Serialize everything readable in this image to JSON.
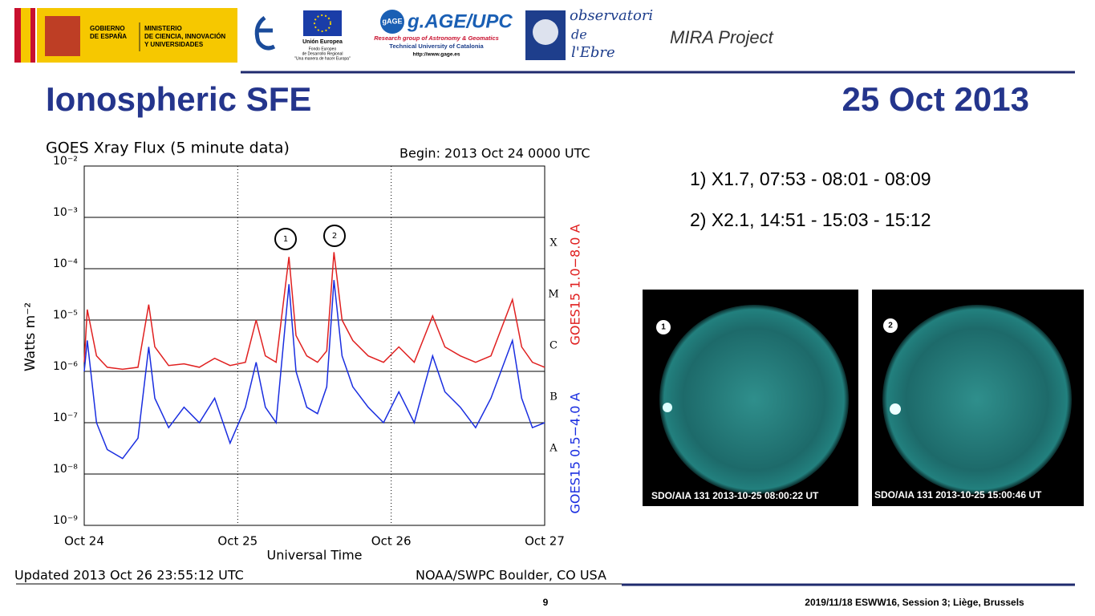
{
  "header": {
    "government": [
      "GOBIERNO",
      "DE ESPAÑA"
    ],
    "ministry": [
      "MINISTERIO",
      "DE CIENCIA, INNOVACIÓN",
      "Y UNIVERSIDADES"
    ],
    "eu": [
      "Unión Europea",
      "Fondo Europeo",
      "de Desarrollo Regional",
      "\"Una manera de hacer Europa\""
    ],
    "gage": {
      "badge": "gAGE",
      "title": "g.AGE/UPC",
      "lines": [
        "Research group of Astronomy & Geomatics",
        "Technical University of Catalonia",
        "http://www.gage.es"
      ]
    },
    "observatory": [
      "observatori",
      "de",
      "l'Ebre"
    ],
    "project": "MIRA Project"
  },
  "slide": {
    "title": "Ionospheric SFE",
    "date": "25 Oct 2013"
  },
  "events": [
    "1) X1.7, 07:53 - 08:01 - 08:09",
    "2) X2.1, 14:51 - 15:03 - 15:12"
  ],
  "images": [
    {
      "label": "1",
      "caption": "SDO/AIA 131 2013-10-25 08:00:22 UT"
    },
    {
      "label": "2",
      "caption": "SDO/AIA 131 2013-10-25 15:00:46 UT"
    }
  ],
  "footer": {
    "page": "9",
    "event": "2019/11/18 ESWW16, Session 3; Liège, Brussels"
  },
  "chart_data": {
    "type": "line",
    "title": "GOES Xray Flux (5 minute data)",
    "subtitle": "Begin: 2013 Oct 24 0000 UTC",
    "x_label": "Universal Time",
    "y_label": "Watts m⁻²",
    "updated": "Updated 2013 Oct 26 23:55:12 UTC",
    "source": "NOAA/SWPC Boulder, CO USA",
    "annotations": [
      "1",
      "2"
    ],
    "class_labels": [
      "X",
      "M",
      "C",
      "B",
      "A"
    ],
    "log_y": true,
    "grid": true,
    "xlim": [
      0,
      3
    ],
    "xticks": [
      {
        "value": 0,
        "label": "Oct 24"
      },
      {
        "value": 1,
        "label": "Oct 25"
      },
      {
        "value": 2,
        "label": "Oct 26"
      },
      {
        "value": 3,
        "label": "Oct 27"
      }
    ],
    "ylim": [
      1e-09,
      0.01
    ],
    "yticks": [
      {
        "value": 0.01,
        "label": "10⁻²"
      },
      {
        "value": 0.001,
        "label": "10⁻³"
      },
      {
        "value": 0.0001,
        "label": "10⁻⁴"
      },
      {
        "value": 1e-05,
        "label": "10⁻⁵"
      },
      {
        "value": 1e-06,
        "label": "10⁻⁶"
      },
      {
        "value": 1e-07,
        "label": "10⁻⁷"
      },
      {
        "value": 1e-08,
        "label": "10⁻⁸"
      },
      {
        "value": 1e-09,
        "label": "10⁻⁹"
      }
    ],
    "x": [
      0,
      0.02,
      0.08,
      0.15,
      0.25,
      0.35,
      0.42,
      0.46,
      0.55,
      0.65,
      0.75,
      0.85,
      0.95,
      1.05,
      1.12,
      1.18,
      1.25,
      1.334,
      1.38,
      1.45,
      1.52,
      1.58,
      1.627,
      1.68,
      1.75,
      1.85,
      1.95,
      2.05,
      2.15,
      2.27,
      2.35,
      2.45,
      2.55,
      2.65,
      2.79,
      2.85,
      2.92,
      3.0
    ],
    "series": [
      {
        "name": "GOES15 1.0−8.0 A",
        "color": "#e02020",
        "values": [
          1.5e-06,
          1.6e-05,
          2e-06,
          1.2e-06,
          1.1e-06,
          1.2e-06,
          2e-05,
          3e-06,
          1.3e-06,
          1.4e-06,
          1.2e-06,
          1.8e-06,
          1.3e-06,
          1.5e-06,
          1e-05,
          2e-06,
          1.5e-06,
          0.00017,
          5e-06,
          2e-06,
          1.5e-06,
          2.5e-06,
          0.00021,
          1e-05,
          4e-06,
          2e-06,
          1.5e-06,
          3e-06,
          1.5e-06,
          1.2e-05,
          3e-06,
          2e-06,
          1.5e-06,
          2e-06,
          2.5e-05,
          3e-06,
          1.5e-06,
          1.2e-06
        ]
      },
      {
        "name": "GOES15 0.5−4.0 A",
        "color": "#1a2ee0",
        "values": [
          1e-06,
          4e-06,
          1e-07,
          3e-08,
          2e-08,
          5e-08,
          3e-06,
          3e-07,
          8e-08,
          2e-07,
          1e-07,
          3e-07,
          4e-08,
          2e-07,
          1.5e-06,
          2e-07,
          1e-07,
          5e-05,
          1e-06,
          2e-07,
          1.5e-07,
          5e-07,
          6e-05,
          2e-06,
          5e-07,
          2e-07,
          1e-07,
          4e-07,
          1e-07,
          2e-06,
          4e-07,
          2e-07,
          8e-08,
          3e-07,
          4e-06,
          3e-07,
          8e-08,
          1e-07
        ]
      }
    ]
  }
}
